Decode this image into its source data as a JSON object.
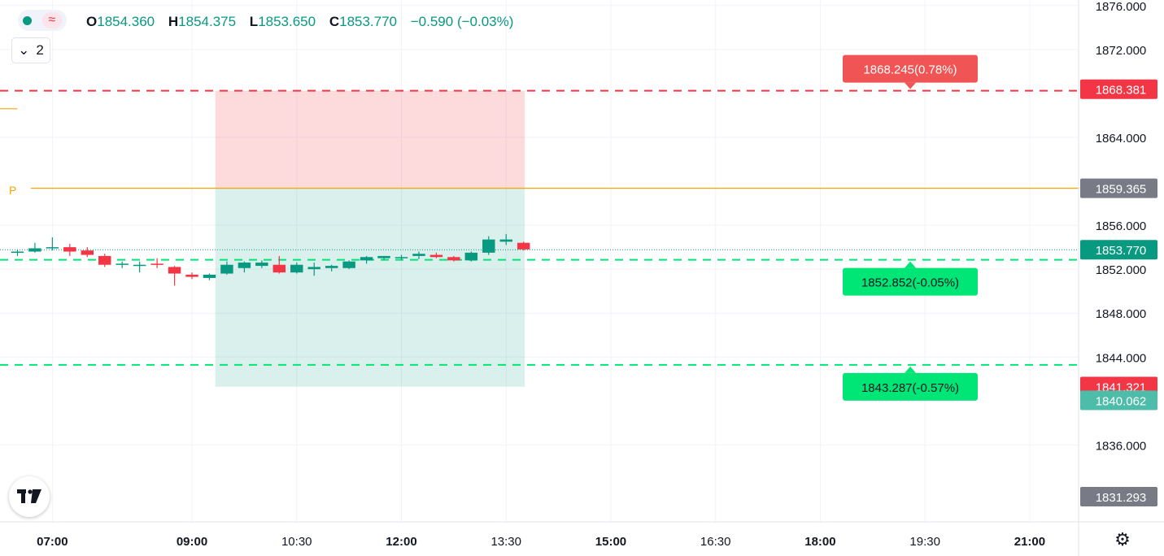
{
  "header": {
    "ohlc": {
      "o_label": "O",
      "o": "1854.360",
      "h_label": "H",
      "h": "1854.375",
      "l_label": "L",
      "l": "1853.650",
      "c_label": "C",
      "c": "1853.770",
      "change": "−0.590 (−0.03%)"
    },
    "indicator_count": "2",
    "wave_glyph": "≈"
  },
  "pivot_label": "P",
  "colors": {
    "up": "#089981",
    "down": "#f23645",
    "target": "#00e676",
    "stop": "#f23645",
    "pivot": "#f7a600",
    "bg": "#ffffff",
    "grid": "#f0f3fa"
  },
  "chart_data": {
    "type": "candlestick",
    "x_ticks": [
      "07:00",
      "09:00",
      "10:30",
      "12:00",
      "13:30",
      "15:00",
      "16:30",
      "18:00",
      "19:30",
      "21:00"
    ],
    "y_ticks": [
      "1876.000",
      "1872.000",
      "1864.000",
      "1856.000",
      "1852.000",
      "1848.000",
      "1844.000",
      "1836.000"
    ],
    "ylim": [
      1829.0,
      1876.5
    ],
    "xlim_minutes": [
      375,
      1302
    ],
    "candles": [
      {
        "t": 390,
        "o": 1853.5,
        "h": 1853.8,
        "l": 1853.2,
        "c": 1853.6
      },
      {
        "t": 405,
        "o": 1853.6,
        "h": 1854.4,
        "l": 1853.5,
        "c": 1853.9
      },
      {
        "t": 420,
        "o": 1853.9,
        "h": 1854.9,
        "l": 1853.7,
        "c": 1854.0
      },
      {
        "t": 435,
        "o": 1854.0,
        "h": 1854.3,
        "l": 1853.2,
        "c": 1853.6
      },
      {
        "t": 450,
        "o": 1853.7,
        "h": 1854.0,
        "l": 1853.1,
        "c": 1853.3
      },
      {
        "t": 465,
        "o": 1853.2,
        "h": 1853.4,
        "l": 1852.2,
        "c": 1852.4
      },
      {
        "t": 480,
        "o": 1852.4,
        "h": 1852.7,
        "l": 1852.1,
        "c": 1852.5
      },
      {
        "t": 495,
        "o": 1852.3,
        "h": 1852.7,
        "l": 1851.7,
        "c": 1852.4
      },
      {
        "t": 510,
        "o": 1852.5,
        "h": 1853.0,
        "l": 1852.1,
        "c": 1852.4
      },
      {
        "t": 525,
        "o": 1852.2,
        "h": 1852.3,
        "l": 1850.5,
        "c": 1851.6
      },
      {
        "t": 540,
        "o": 1851.5,
        "h": 1851.7,
        "l": 1851.1,
        "c": 1851.3
      },
      {
        "t": 555,
        "o": 1851.2,
        "h": 1851.6,
        "l": 1851.0,
        "c": 1851.5
      },
      {
        "t": 570,
        "o": 1851.6,
        "h": 1852.7,
        "l": 1851.5,
        "c": 1852.4
      },
      {
        "t": 585,
        "o": 1852.1,
        "h": 1852.7,
        "l": 1851.7,
        "c": 1852.6
      },
      {
        "t": 600,
        "o": 1852.3,
        "h": 1852.8,
        "l": 1852.1,
        "c": 1852.6
      },
      {
        "t": 615,
        "o": 1852.4,
        "h": 1853.2,
        "l": 1851.6,
        "c": 1851.7
      },
      {
        "t": 630,
        "o": 1851.7,
        "h": 1852.6,
        "l": 1851.6,
        "c": 1852.4
      },
      {
        "t": 645,
        "o": 1852.0,
        "h": 1852.6,
        "l": 1851.4,
        "c": 1852.2
      },
      {
        "t": 660,
        "o": 1852.1,
        "h": 1852.4,
        "l": 1851.8,
        "c": 1852.3
      },
      {
        "t": 675,
        "o": 1852.1,
        "h": 1852.8,
        "l": 1852.0,
        "c": 1852.7
      },
      {
        "t": 690,
        "o": 1852.8,
        "h": 1853.2,
        "l": 1852.5,
        "c": 1853.1
      },
      {
        "t": 705,
        "o": 1853.0,
        "h": 1853.2,
        "l": 1852.8,
        "c": 1853.2
      },
      {
        "t": 720,
        "o": 1853.0,
        "h": 1853.3,
        "l": 1852.8,
        "c": 1853.1
      },
      {
        "t": 735,
        "o": 1853.2,
        "h": 1853.6,
        "l": 1852.9,
        "c": 1853.4
      },
      {
        "t": 750,
        "o": 1853.3,
        "h": 1853.5,
        "l": 1853.0,
        "c": 1853.1
      },
      {
        "t": 765,
        "o": 1853.1,
        "h": 1853.2,
        "l": 1852.7,
        "c": 1852.8
      },
      {
        "t": 780,
        "o": 1852.8,
        "h": 1853.6,
        "l": 1852.7,
        "c": 1853.5
      },
      {
        "t": 795,
        "o": 1853.5,
        "h": 1855.0,
        "l": 1853.3,
        "c": 1854.7
      },
      {
        "t": 810,
        "o": 1854.5,
        "h": 1855.2,
        "l": 1854.2,
        "c": 1854.7
      },
      {
        "t": 825,
        "o": 1854.4,
        "h": 1854.5,
        "l": 1853.7,
        "c": 1853.8
      }
    ],
    "position": {
      "start_t": 560,
      "end_t": 826,
      "entry": 1859.365,
      "stop": 1868.245,
      "target": 1841.3
    },
    "hlines": [
      {
        "price": 1868.245,
        "style": "dashed",
        "color": "#f23645",
        "label": "1868.245(0.78%)"
      },
      {
        "price": 1852.852,
        "style": "dashed",
        "color": "#00e676",
        "label": "1852.852(-0.05%)"
      },
      {
        "price": 1843.287,
        "style": "dashed",
        "color": "#00e676",
        "label": "1843.287(-0.57%)"
      },
      {
        "price": 1859.365,
        "style": "solid",
        "color": "#f7a600"
      },
      {
        "price": 1866.6,
        "style": "solid",
        "color": "#f7a600",
        "partial_end_t": 390
      }
    ],
    "last_price": 1853.77,
    "price_badges": [
      {
        "label": "1868.381",
        "price": 1868.381,
        "bg": "#f23645"
      },
      {
        "label": "1859.365",
        "price": 1859.365,
        "bg": "#787b86"
      },
      {
        "label": "1853.770",
        "price": 1853.77,
        "bg": "#089981"
      },
      {
        "label": "1841.321",
        "price": 1841.321,
        "bg": "#f23645"
      },
      {
        "label": "1840.062",
        "price": 1840.062,
        "bg": "#4dbda9"
      },
      {
        "label": "1831.293",
        "price": 1831.293,
        "bg": "#787b86"
      }
    ],
    "grid": true
  }
}
